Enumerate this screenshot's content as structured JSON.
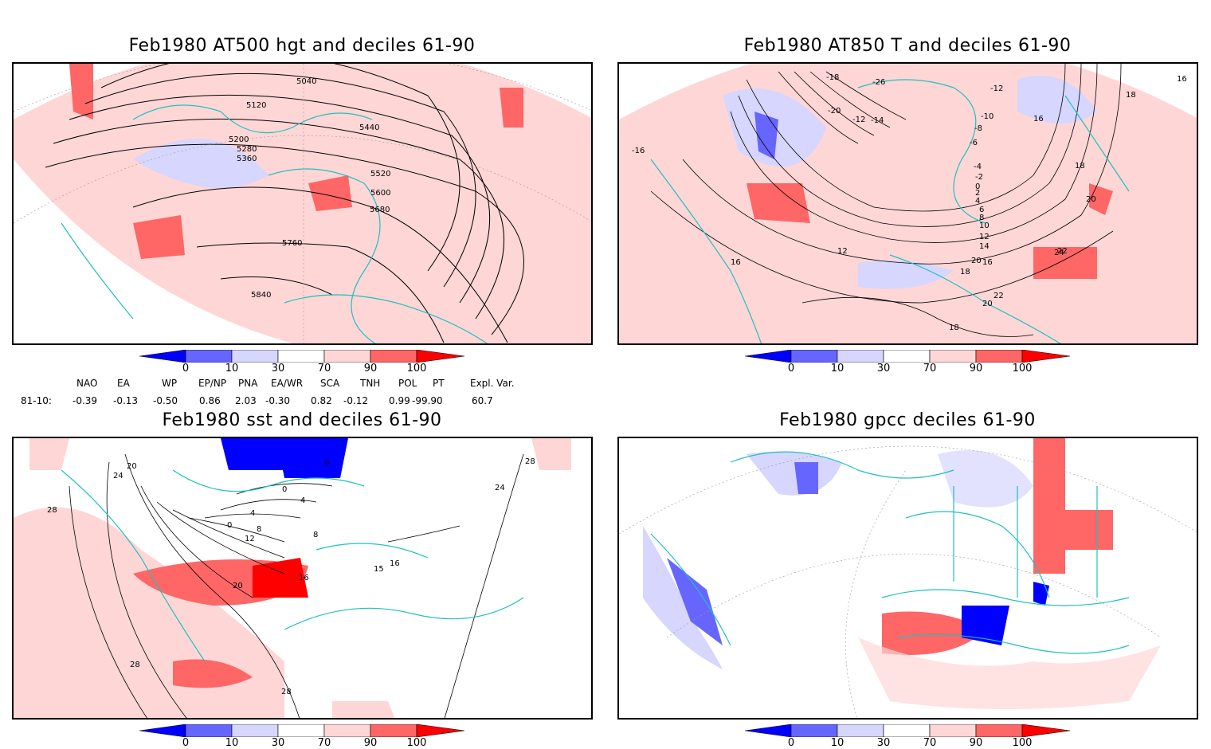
{
  "panels": {
    "tl": {
      "title": "Feb1980 AT500 hgt and deciles 61-90",
      "contour_labels": [
        "5040",
        "5120",
        "5200",
        "5280",
        "5360",
        "5440",
        "5520",
        "5600",
        "5680",
        "5760",
        "5840"
      ]
    },
    "tr": {
      "title": "Feb1980 AT850 T and deciles 61-90",
      "contour_labels": [
        "-18",
        "-26",
        "-12",
        "-20",
        "-12",
        "-14",
        "-10",
        "-8",
        "-6",
        "-4",
        "-2",
        "0",
        "2",
        "4",
        "6",
        "8",
        "10",
        "12",
        "14",
        "16",
        "18",
        "20",
        "22",
        "24",
        "16",
        "18",
        "12",
        "16",
        "18",
        "20",
        "22",
        "20",
        "18",
        "-16",
        "16"
      ]
    },
    "bl": {
      "title": "Feb1980 sst and deciles 61-90",
      "contour_labels": [
        "20",
        "24",
        "28",
        "0",
        "0",
        "4",
        "0",
        "4",
        "8",
        "12",
        "16",
        "8",
        "20",
        "15",
        "16",
        "28",
        "28",
        "24",
        "28"
      ]
    },
    "br": {
      "title": "Feb1980 gpcc deciles 61-90",
      "contour_labels": []
    }
  },
  "colorbar": {
    "ticks": [
      "0",
      "10",
      "30",
      "70",
      "90",
      "100"
    ],
    "colors": [
      "#0000ff",
      "#6666ff",
      "#d6d6ff",
      "#ffffff",
      "#ffd6d6",
      "#ff6666",
      "#ff0000"
    ]
  },
  "indices": {
    "headers": [
      "NAO",
      "EA",
      "WP",
      "EP/NP",
      "PNA",
      "EA/WR",
      "SCA",
      "TNH",
      "POL",
      "PT",
      "Expl. Var."
    ],
    "row_label": "81-10:",
    "values": [
      "-0.39",
      "-0.13",
      "-0.50",
      "0.86",
      "2.03",
      "-0.30",
      "0.82",
      "-0.12",
      "0.99",
      "-99.90",
      "60.7"
    ]
  },
  "colors": {
    "coast": "#20c0c0",
    "contour": "#000000",
    "frame": "#000000"
  }
}
